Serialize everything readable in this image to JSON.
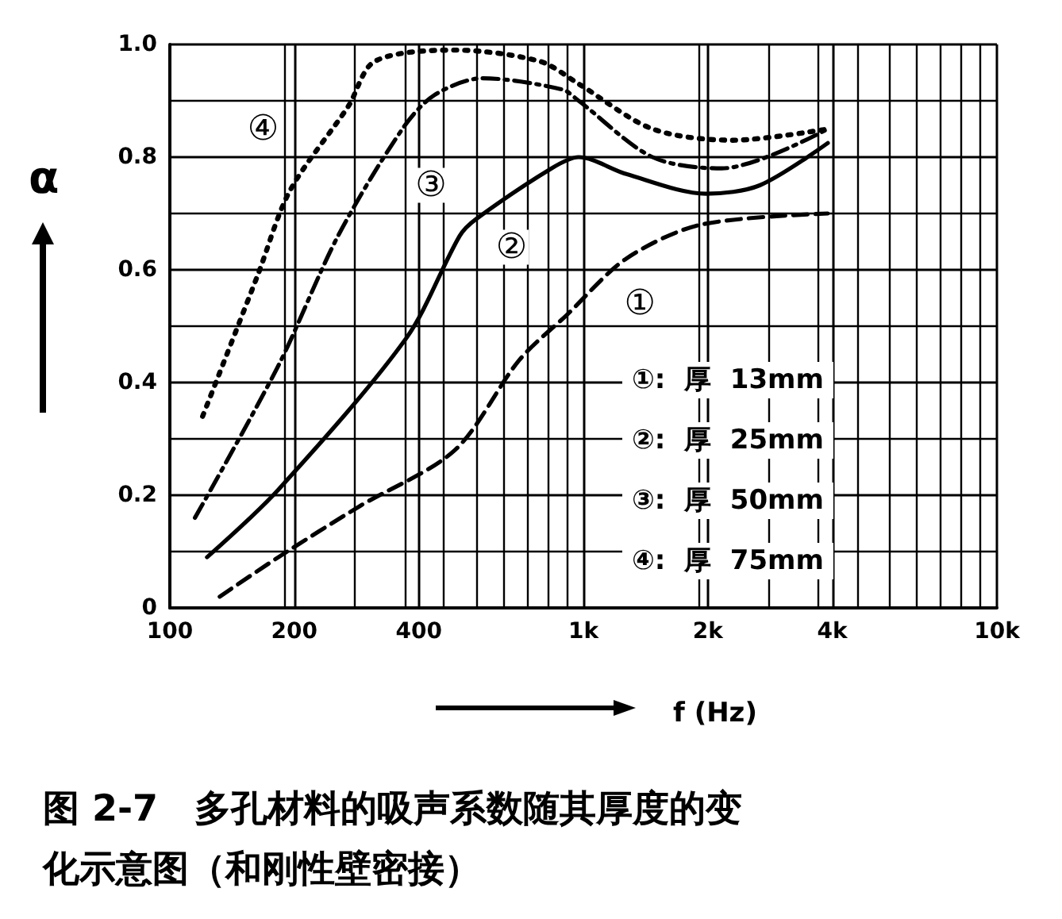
{
  "chart_data": {
    "type": "line",
    "title": "图 2-7　多孔材料的吸声系数随其厚度的变化示意图（和刚性壁密接）",
    "xlabel": "f (Hz)",
    "ylabel": "α",
    "log": "x",
    "grid": true,
    "marker": "none",
    "xlim": [
      100,
      10000
    ],
    "xticks": [
      100,
      200,
      400,
      {
        "value": 1000,
        "label": "1k"
      },
      {
        "value": 2000,
        "label": "2k"
      },
      {
        "value": 4000,
        "label": "4k"
      },
      {
        "value": 10000,
        "label": "10k"
      }
    ],
    "ylim": [
      0,
      1
    ],
    "yticks": [
      0,
      0.2,
      0.4,
      0.6,
      0.8,
      {
        "value": 1,
        "label": "1.0"
      }
    ],
    "series": [
      {
        "color": "#000000",
        "line_style": "dashed",
        "x": [
          132,
          183,
          287,
          489,
          700,
          912,
          1270,
          1920,
          3900
        ],
        "values": [
          0.02,
          0.09,
          0.18,
          0.28,
          0.44,
          0.52,
          0.62,
          0.68,
          0.7
        ]
      },
      {
        "color": "#000000",
        "line_style": "solid",
        "x": [
          123,
          183,
          374,
          502,
          550,
          837,
          974,
          1270,
          1980,
          2670,
          3900
        ],
        "values": [
          0.09,
          0.21,
          0.48,
          0.66,
          0.69,
          0.78,
          0.8,
          0.77,
          0.735,
          0.75,
          0.825
        ]
      },
      {
        "color": "#000000",
        "line_style": "dashdot",
        "x": [
          115,
          183,
          255,
          365,
          436,
          570,
          890,
          974,
          1470,
          2160,
          3900
        ],
        "values": [
          0.16,
          0.43,
          0.66,
          0.85,
          0.91,
          0.94,
          0.92,
          0.9,
          0.8,
          0.78,
          0.85
        ]
      },
      {
        "color": "#000000",
        "line_style": "dotted",
        "x": [
          120,
          163,
          195,
          270,
          313,
          490,
          785,
          974,
          1470,
          2300,
          3900
        ],
        "values": [
          0.34,
          0.59,
          0.74,
          0.89,
          0.97,
          0.99,
          0.97,
          0.93,
          0.85,
          0.83,
          0.85
        ]
      }
    ],
    "annotations": [
      {
        "text": "①",
        "x": 1370,
        "y": 0.54
      },
      {
        "text": "②",
        "x": 670,
        "y": 0.64
      },
      {
        "text": "③",
        "x": 428,
        "y": 0.75
      },
      {
        "text": "④",
        "x": 168,
        "y": 0.85
      },
      "①:  厚  13mm",
      "②:  厚  25mm",
      "③:  厚  50mm",
      "④:  厚  75mm"
    ]
  }
}
